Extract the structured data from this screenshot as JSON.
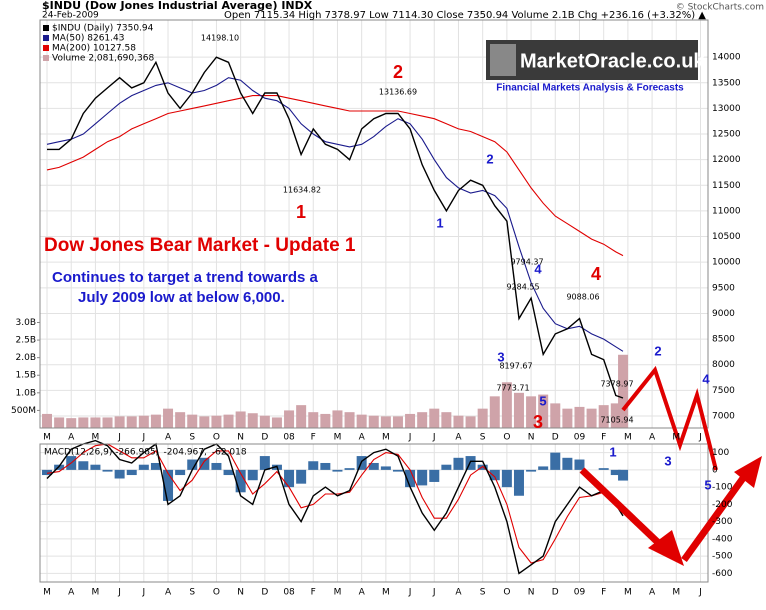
{
  "header": {
    "symbol": "$INDU (Dow Jones Industrial Average) INDX",
    "copyright": "© StockCharts.com",
    "date": "24-Feb-2009",
    "quote": "Open 7115.34   High 7378.97   Low 7114.30   Close 7350.94   Volume 2.1B   Chg +236.16 (+3.32%) ▲"
  },
  "banner": {
    "logo": "MarketOracle.co.uk",
    "tagline": "Financial Markets Analysis & Forecasts"
  },
  "annotations": {
    "headline": "Dow Jones Bear Market - Update 1",
    "note": [
      "Continues to target a trend towards a",
      "July 2009 low at below 6,000."
    ],
    "waves": [
      "1",
      "2",
      "1",
      "2",
      "4",
      "4",
      "3",
      "5",
      "3",
      "1",
      "2",
      "3",
      "4",
      "5"
    ],
    "prices": [
      "14198.10",
      "13136.69",
      "11634.82",
      "9794.37",
      "9284.55",
      "9088.06",
      "8197.67",
      "7773.71",
      "7378.97",
      "7105.94"
    ]
  },
  "chart_data": [
    {
      "type": "line",
      "x": [
        0,
        0.5,
        1,
        1.5,
        2,
        2.5,
        3,
        3.5,
        4,
        4.5,
        5,
        5.5,
        6,
        6.5,
        7,
        7.5,
        8,
        8.5,
        9,
        9.5,
        10,
        10.5,
        11,
        11.5,
        12,
        12.5,
        13,
        13.5,
        14,
        14.5,
        15,
        15.5,
        16,
        16.5,
        17,
        17.5,
        18,
        18.5,
        19,
        19.5,
        20,
        20.5,
        21,
        21.5,
        22,
        22.5,
        23,
        23.5,
        23.8
      ],
      "xlim": [
        -0.29,
        27.31
      ],
      "xticks": [
        {
          "value": 0,
          "label": "M"
        },
        {
          "value": 1,
          "label": "A"
        },
        {
          "value": 2,
          "label": "M"
        },
        {
          "value": 3,
          "label": "J"
        },
        {
          "value": 4,
          "label": "J"
        },
        {
          "value": 5,
          "label": "A"
        },
        {
          "value": 6,
          "label": "S"
        },
        {
          "value": 7,
          "label": "O"
        },
        {
          "value": 8,
          "label": "N"
        },
        {
          "value": 9,
          "label": "D"
        },
        {
          "value": 10,
          "label": "08"
        },
        {
          "value": 11,
          "label": "F"
        },
        {
          "value": 12,
          "label": "M"
        },
        {
          "value": 13,
          "label": "A"
        },
        {
          "value": 14,
          "label": "M"
        },
        {
          "value": 15,
          "label": "J"
        },
        {
          "value": 16,
          "label": "J"
        },
        {
          "value": 17,
          "label": "A"
        },
        {
          "value": 18,
          "label": "S"
        },
        {
          "value": 19,
          "label": "O"
        },
        {
          "value": 20,
          "label": "N"
        },
        {
          "value": 21,
          "label": "D"
        },
        {
          "value": 22,
          "label": "09"
        },
        {
          "value": 23,
          "label": "F"
        },
        {
          "value": 24,
          "label": "M"
        },
        {
          "value": 25,
          "label": "A"
        },
        {
          "value": 26,
          "label": "M"
        },
        {
          "value": 27,
          "label": "J"
        }
      ],
      "ylim": [
        6765,
        14725
      ],
      "yticks": [
        7000,
        7500,
        8000,
        8500,
        9000,
        9500,
        10000,
        10500,
        11000,
        11500,
        12000,
        12500,
        13000,
        13500,
        14000
      ],
      "y2lim": [
        0,
        11600000000
      ],
      "y2ticks": [
        {
          "value": 500000000,
          "label": "500M"
        },
        {
          "value": 1000000000,
          "label": "1.0B"
        },
        {
          "value": 1500000000,
          "label": "1.5B"
        },
        {
          "value": 2000000000,
          "label": "2.0B"
        },
        {
          "value": 2500000000,
          "label": "2.5B"
        },
        {
          "value": 3000000000,
          "label": "3.0B"
        }
      ],
      "grid": true,
      "series": [
        {
          "name": "Volume 2,081,690,368",
          "type": "bar",
          "axis": "y2",
          "color": "#cfa3a9",
          "values": [
            400000000,
            300000000,
            280000000,
            300000000,
            300000000,
            300000000,
            330000000,
            330000000,
            350000000,
            380000000,
            550000000,
            450000000,
            380000000,
            330000000,
            350000000,
            380000000,
            470000000,
            420000000,
            350000000,
            300000000,
            500000000,
            650000000,
            450000000,
            400000000,
            500000000,
            450000000,
            380000000,
            350000000,
            330000000,
            330000000,
            400000000,
            450000000,
            550000000,
            450000000,
            350000000,
            330000000,
            550000000,
            900000000,
            1300000000,
            1000000000,
            900000000,
            950000000,
            700000000,
            550000000,
            600000000,
            550000000,
            650000000,
            700000000,
            2081690368
          ]
        },
        {
          "name": "MA(200) 10127.58",
          "color": "#e00000",
          "values": [
            11800,
            11850,
            11950,
            12050,
            12200,
            12350,
            12450,
            12600,
            12700,
            12800,
            12900,
            12950,
            13000,
            13050,
            13100,
            13150,
            13200,
            13250,
            13250,
            13250,
            13200,
            13150,
            13100,
            13050,
            13000,
            12950,
            12950,
            12950,
            12950,
            12950,
            12900,
            12850,
            12800,
            12700,
            12600,
            12550,
            12450,
            12350,
            12150,
            11800,
            11450,
            11150,
            10900,
            10750,
            10600,
            10450,
            10350,
            10200,
            10127.58
          ]
        },
        {
          "name": "MA(50) 8261.43",
          "color": "#1a1a8c",
          "values": [
            12300,
            12350,
            12400,
            12500,
            12700,
            12900,
            13100,
            13250,
            13350,
            13450,
            13500,
            13400,
            13300,
            13350,
            13450,
            13600,
            13550,
            13350,
            13200,
            13150,
            13000,
            12700,
            12500,
            12350,
            12300,
            12250,
            12300,
            12450,
            12650,
            12800,
            12700,
            12400,
            12000,
            11650,
            11450,
            11350,
            11400,
            11300,
            11050,
            10300,
            9600,
            9100,
            8800,
            8700,
            8750,
            8600,
            8500,
            8350,
            8261.43
          ]
        },
        {
          "name": "$INDU (Daily) 7350.94",
          "color": "#000000",
          "values": [
            12200,
            12200,
            12400,
            12900,
            13200,
            13400,
            13600,
            13400,
            13500,
            13900,
            13300,
            13000,
            13300,
            13700,
            14000,
            13900,
            13300,
            12900,
            13300,
            13300,
            12800,
            12100,
            12600,
            12300,
            12200,
            12000,
            12600,
            12800,
            12900,
            12900,
            12600,
            11900,
            11400,
            11000,
            11400,
            11600,
            11500,
            11100,
            10800,
            8900,
            9300,
            8200,
            8600,
            8700,
            8900,
            8200,
            8100,
            7400,
            7350.94
          ]
        }
      ]
    },
    {
      "type": "line",
      "x": [
        0,
        0.5,
        1,
        1.5,
        2,
        2.5,
        3,
        3.5,
        4,
        4.5,
        5,
        5.5,
        6,
        6.5,
        7,
        7.5,
        8,
        8.5,
        9,
        9.5,
        10,
        10.5,
        11,
        11.5,
        12,
        12.5,
        13,
        13.5,
        14,
        14.5,
        15,
        15.5,
        16,
        16.5,
        17,
        17.5,
        18,
        18.5,
        19,
        19.5,
        20,
        20.5,
        21,
        21.5,
        22,
        22.5,
        23,
        23.5,
        23.8
      ],
      "xlim": [
        -0.29,
        27.31
      ],
      "ylim": [
        -650,
        150
      ],
      "yticks": [
        100,
        0,
        -100,
        -200,
        -300,
        -400,
        -500,
        -600
      ],
      "grid": true,
      "series": [
        {
          "name": "-62.018",
          "type": "bar",
          "color": "#3a6ea5",
          "values": [
            -30,
            30,
            80,
            50,
            30,
            -10,
            -50,
            -30,
            30,
            40,
            -180,
            -30,
            60,
            70,
            40,
            -30,
            -130,
            -60,
            80,
            30,
            -100,
            -80,
            50,
            40,
            -10,
            10,
            80,
            40,
            20,
            -10,
            -100,
            -90,
            -70,
            30,
            70,
            80,
            30,
            -60,
            -100,
            -150,
            -10,
            20,
            100,
            70,
            60,
            0,
            10,
            -30,
            -62.018
          ]
        },
        {
          "name": "-204.967,",
          "color": "#e00000",
          "values": [
            -20,
            -10,
            40,
            100,
            140,
            150,
            110,
            70,
            70,
            110,
            -20,
            -120,
            -60,
            50,
            110,
            110,
            -20,
            -140,
            -80,
            -10,
            -100,
            -220,
            -200,
            -140,
            -140,
            -130,
            -30,
            60,
            100,
            90,
            0,
            -160,
            -280,
            -280,
            -170,
            -30,
            20,
            -40,
            -200,
            -450,
            -540,
            -520,
            -400,
            -270,
            -160,
            -150,
            -130,
            -170,
            -204.967
          ]
        },
        {
          "name": "MACD(12,26,9) -266.985,",
          "color": "#000000",
          "values": [
            -50,
            20,
            120,
            150,
            170,
            140,
            60,
            40,
            100,
            150,
            -200,
            -150,
            0,
            120,
            150,
            80,
            -150,
            -200,
            0,
            20,
            -200,
            -300,
            -150,
            -100,
            -150,
            -120,
            50,
            100,
            120,
            80,
            -100,
            -250,
            -350,
            -250,
            -100,
            50,
            50,
            -100,
            -300,
            -600,
            -550,
            -500,
            -300,
            -200,
            -100,
            -150,
            -120,
            -200,
            -266.985
          ]
        }
      ]
    }
  ]
}
